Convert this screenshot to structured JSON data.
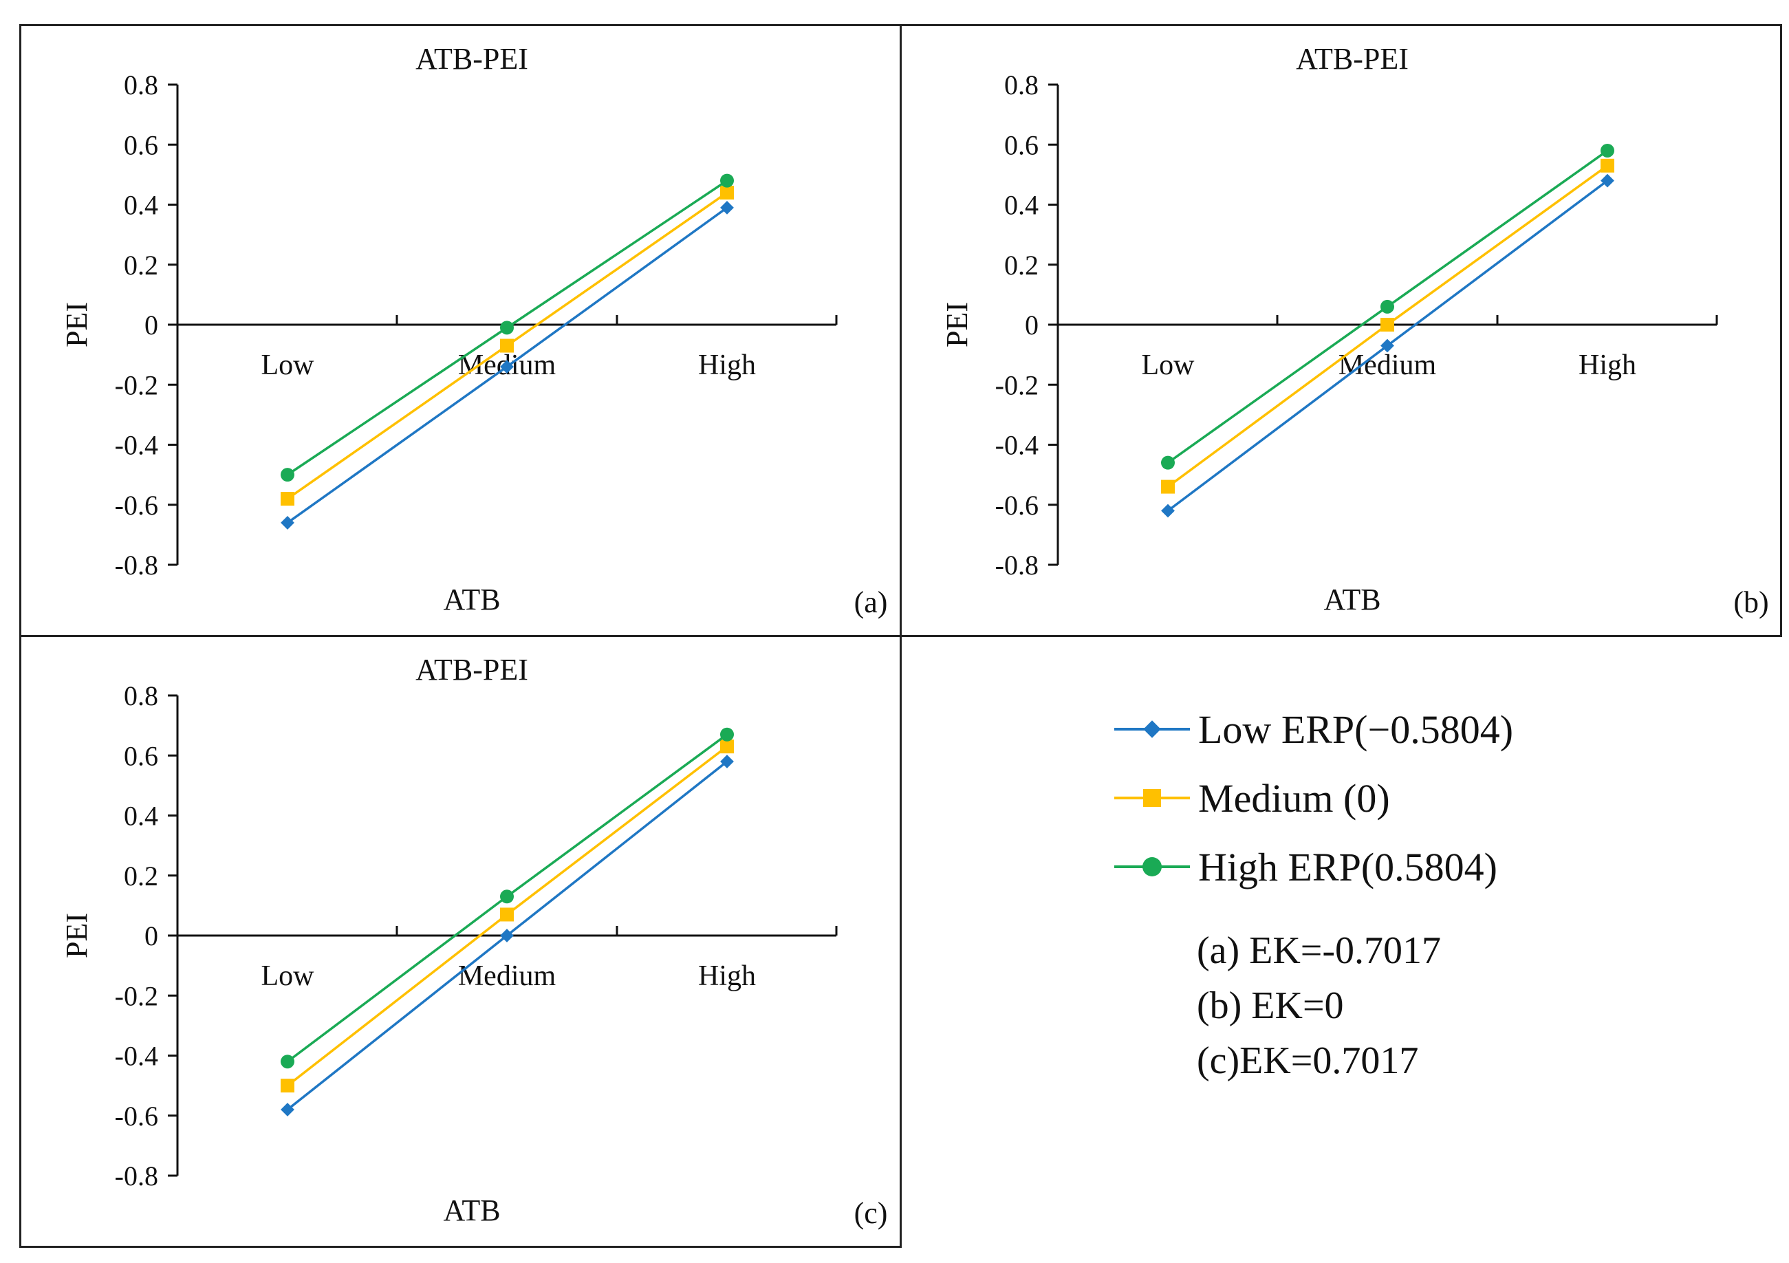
{
  "colors": {
    "low": "#1f77c4",
    "medium": "#ffc000",
    "high": "#1aaa55",
    "axis": "#111111"
  },
  "chart_data": [
    {
      "type": "line",
      "panel_label": "(a)",
      "title": "ATB-PEI",
      "xlabel": "ATB",
      "ylabel": "PEI",
      "categories": [
        "Low",
        "Medium",
        "High"
      ],
      "ylim": [
        -0.8,
        0.8
      ],
      "yticks": [
        "0.8",
        "0.6",
        "0.4",
        "0.2",
        "0",
        "-0.2",
        "-0.4",
        "-0.6",
        "-0.8"
      ],
      "series": [
        {
          "name": "Low ERP(−0.5804)",
          "values": [
            -0.66,
            -0.14,
            0.39
          ]
        },
        {
          "name": "Medium (0)",
          "values": [
            -0.58,
            -0.07,
            0.44
          ]
        },
        {
          "name": "High ERP(0.5804)",
          "values": [
            -0.5,
            -0.01,
            0.48
          ]
        }
      ]
    },
    {
      "type": "line",
      "panel_label": "(b)",
      "title": "ATB-PEI",
      "xlabel": "ATB",
      "ylabel": "PEI",
      "categories": [
        "Low",
        "Medium",
        "High"
      ],
      "ylim": [
        -0.8,
        0.8
      ],
      "yticks": [
        "0.8",
        "0.6",
        "0.4",
        "0.2",
        "0",
        "-0.2",
        "-0.4",
        "-0.6",
        "-0.8"
      ],
      "series": [
        {
          "name": "Low ERP(−0.5804)",
          "values": [
            -0.62,
            -0.07,
            0.48
          ]
        },
        {
          "name": "Medium (0)",
          "values": [
            -0.54,
            0.0,
            0.53
          ]
        },
        {
          "name": "High ERP(0.5804)",
          "values": [
            -0.46,
            0.06,
            0.58
          ]
        }
      ]
    },
    {
      "type": "line",
      "panel_label": "(c)",
      "title": "ATB-PEI",
      "xlabel": "ATB",
      "ylabel": "PEI",
      "categories": [
        "Low",
        "Medium",
        "High"
      ],
      "ylim": [
        -0.8,
        0.8
      ],
      "yticks": [
        "0.8",
        "0.6",
        "0.4",
        "0.2",
        "0",
        "-0.2",
        "-0.4",
        "-0.6",
        "-0.8"
      ],
      "series": [
        {
          "name": "Low ERP(−0.5804)",
          "values": [
            -0.58,
            0.0,
            0.58
          ]
        },
        {
          "name": "Medium (0)",
          "values": [
            -0.5,
            0.07,
            0.63
          ]
        },
        {
          "name": "High ERP(0.5804)",
          "values": [
            -0.42,
            0.13,
            0.67
          ]
        }
      ]
    }
  ],
  "legend": {
    "items": [
      {
        "label": "Low ERP(−0.5804)",
        "marker": "diamond",
        "color_key": "low"
      },
      {
        "label": "Medium (0)",
        "marker": "square",
        "color_key": "medium"
      },
      {
        "label": "High ERP(0.5804)",
        "marker": "circle",
        "color_key": "high"
      }
    ],
    "notes": [
      "(a) EK=-0.7017",
      "(b) EK=0",
      "(c)EK=0.7017"
    ]
  }
}
